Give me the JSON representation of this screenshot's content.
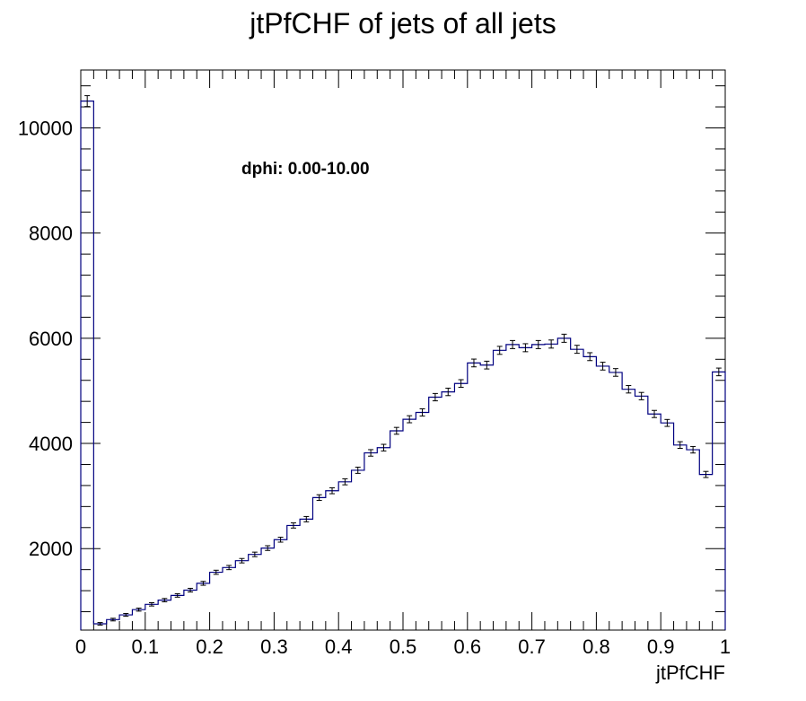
{
  "chart_data": {
    "type": "histogram",
    "title": "jtPfCHF of jets of all jets",
    "xlabel": "jtPfCHF",
    "ylabel": "",
    "annotation": "dphi: 0.00-10.00",
    "xlim": [
      0,
      1
    ],
    "ylim": [
      0,
      11000
    ],
    "bin_width": 0.02,
    "x_ticks": [
      "0",
      "0.1",
      "0.2",
      "0.3",
      "0.4",
      "0.5",
      "0.6",
      "0.7",
      "0.8",
      "0.9",
      "1"
    ],
    "y_ticks": [
      "2000",
      "4000",
      "6000",
      "8000",
      "10000"
    ],
    "grid": false,
    "legend": "none",
    "line_color": "#000080",
    "series": [
      {
        "bin_centers": [
          0.01,
          0.03,
          0.05,
          0.07,
          0.09,
          0.11,
          0.13,
          0.15,
          0.17,
          0.19,
          0.21,
          0.23,
          0.25,
          0.27,
          0.29,
          0.31,
          0.33,
          0.35,
          0.37,
          0.39,
          0.41,
          0.43,
          0.45,
          0.47,
          0.49,
          0.51,
          0.53,
          0.55,
          0.57,
          0.59,
          0.61,
          0.63,
          0.65,
          0.67,
          0.69,
          0.71,
          0.73,
          0.75,
          0.77,
          0.79,
          0.81,
          0.83,
          0.85,
          0.87,
          0.89,
          0.91,
          0.93,
          0.95,
          0.97,
          0.99
        ],
        "values": [
          10510,
          570,
          650,
          740,
          840,
          940,
          1020,
          1110,
          1210,
          1340,
          1550,
          1640,
          1770,
          1890,
          2010,
          2170,
          2440,
          2560,
          2970,
          3100,
          3270,
          3490,
          3820,
          3920,
          4240,
          4460,
          4590,
          4880,
          4980,
          5140,
          5530,
          5490,
          5770,
          5880,
          5820,
          5880,
          5890,
          6000,
          5790,
          5650,
          5470,
          5350,
          5030,
          4900,
          4560,
          4390,
          3970,
          3880,
          3410,
          5360
        ],
        "errors": [
          103,
          24,
          25,
          27,
          29,
          31,
          32,
          33,
          35,
          37,
          39,
          40,
          42,
          43,
          45,
          47,
          49,
          51,
          54,
          56,
          57,
          59,
          62,
          63,
          65,
          67,
          68,
          70,
          71,
          72,
          74,
          74,
          76,
          77,
          76,
          77,
          77,
          77,
          76,
          75,
          74,
          73,
          71,
          70,
          68,
          66,
          63,
          62,
          58,
          73
        ]
      }
    ]
  }
}
